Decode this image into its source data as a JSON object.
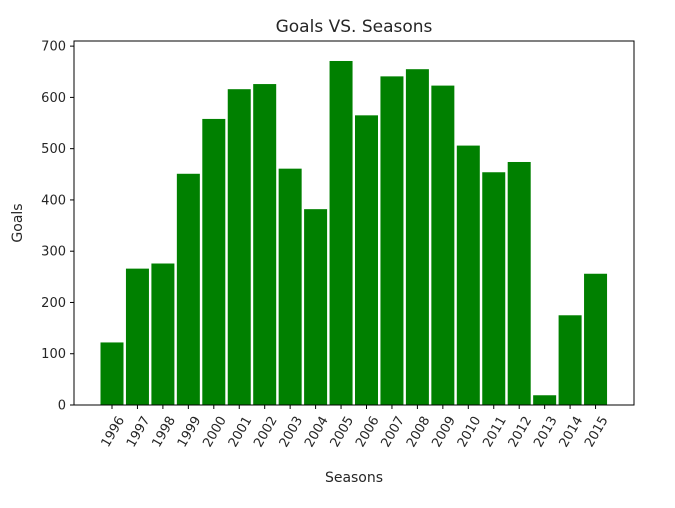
{
  "chart_data": {
    "type": "bar",
    "title": "Goals VS. Seasons",
    "xlabel": "Seasons",
    "ylabel": "Goals",
    "categories": [
      "1996",
      "1997",
      "1998",
      "1999",
      "2000",
      "2001",
      "2002",
      "2003",
      "2004",
      "2005",
      "2006",
      "2007",
      "2008",
      "2009",
      "2010",
      "2011",
      "2012",
      "2013",
      "2014",
      "2015"
    ],
    "values": [
      122,
      266,
      276,
      451,
      558,
      616,
      626,
      461,
      382,
      671,
      565,
      641,
      655,
      623,
      506,
      454,
      474,
      19,
      175,
      256
    ],
    "ylim": [
      0,
      710
    ],
    "yticks": [
      0,
      100,
      200,
      300,
      400,
      500,
      600,
      700
    ],
    "bar_color": "#008000",
    "grid": false
  }
}
